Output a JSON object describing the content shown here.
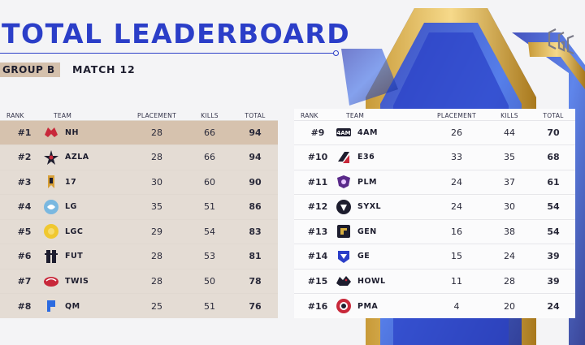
{
  "header": {
    "title": "TOTAL LEADERBOARD",
    "group": "GROUP B",
    "match": "MATCH 12"
  },
  "columns": {
    "rank": "RANK",
    "team": "TEAM",
    "placement": "PLACEMENT",
    "kills": "KILLS",
    "total": "TOTAL"
  },
  "left_rows": [
    {
      "rank": "#1",
      "team": "NH",
      "icon": "nh-logo-icon",
      "placement": "28",
      "kills": "66",
      "total": "94"
    },
    {
      "rank": "#2",
      "team": "AZLA",
      "icon": "azla-logo-icon",
      "placement": "28",
      "kills": "66",
      "total": "94"
    },
    {
      "rank": "#3",
      "team": "17",
      "icon": "17-logo-icon",
      "placement": "30",
      "kills": "60",
      "total": "90"
    },
    {
      "rank": "#4",
      "team": "LG",
      "icon": "lg-logo-icon",
      "placement": "35",
      "kills": "51",
      "total": "86"
    },
    {
      "rank": "#5",
      "team": "LGC",
      "icon": "lgc-logo-icon",
      "placement": "29",
      "kills": "54",
      "total": "83"
    },
    {
      "rank": "#6",
      "team": "FUT",
      "icon": "fut-logo-icon",
      "placement": "28",
      "kills": "53",
      "total": "81"
    },
    {
      "rank": "#7",
      "team": "TWIS",
      "icon": "twis-logo-icon",
      "placement": "28",
      "kills": "50",
      "total": "78"
    },
    {
      "rank": "#8",
      "team": "QM",
      "icon": "qm-logo-icon",
      "placement": "25",
      "kills": "51",
      "total": "76"
    }
  ],
  "right_rows": [
    {
      "rank": "#9",
      "team": "4AM",
      "icon": "4am-logo-icon",
      "placement": "26",
      "kills": "44",
      "total": "70"
    },
    {
      "rank": "#10",
      "team": "E36",
      "icon": "e36-logo-icon",
      "placement": "33",
      "kills": "35",
      "total": "68"
    },
    {
      "rank": "#11",
      "team": "PLM",
      "icon": "plm-logo-icon",
      "placement": "24",
      "kills": "37",
      "total": "61"
    },
    {
      "rank": "#12",
      "team": "SYXL",
      "icon": "syxl-logo-icon",
      "placement": "24",
      "kills": "30",
      "total": "54"
    },
    {
      "rank": "#13",
      "team": "GEN",
      "icon": "gen-logo-icon",
      "placement": "16",
      "kills": "38",
      "total": "54"
    },
    {
      "rank": "#14",
      "team": "GE",
      "icon": "ge-logo-icon",
      "placement": "15",
      "kills": "24",
      "total": "39"
    },
    {
      "rank": "#15",
      "team": "HOWL",
      "icon": "howl-logo-icon",
      "placement": "11",
      "kills": "28",
      "total": "39"
    },
    {
      "rank": "#16",
      "team": "PMA",
      "icon": "pma-logo-icon",
      "placement": "4",
      "kills": "20",
      "total": "24"
    }
  ],
  "colors": {
    "accent": "#2b3ec8",
    "first_row": "#d6c2ae",
    "left_rows": "#e4dcd4",
    "badge": "#d4c0ac"
  }
}
